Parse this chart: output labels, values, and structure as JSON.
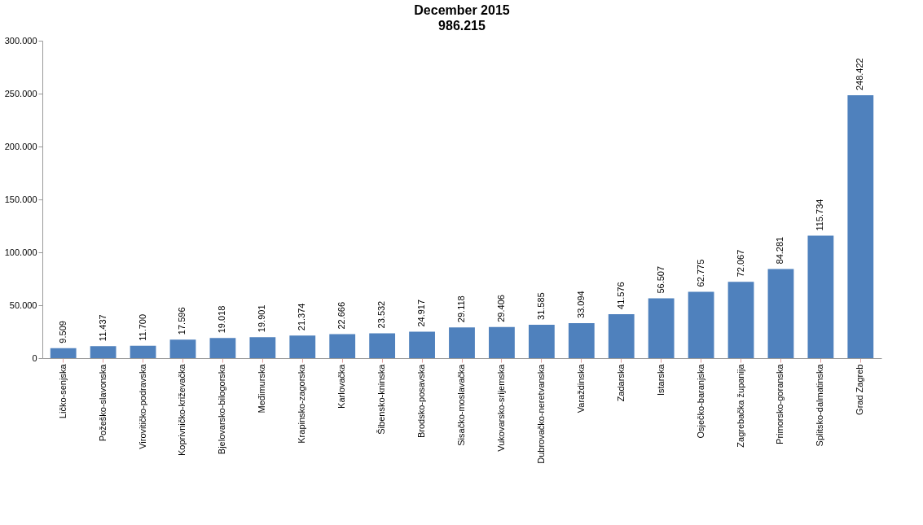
{
  "chart_data": {
    "type": "bar",
    "title": "December 2015",
    "subtitle": "986.215",
    "categories": [
      "Ličko-senjska",
      "Požeško-slavonska",
      "Virovitičko-podravska",
      "Koprivničko-križevačka",
      "Bjelovarsko-bilogorska",
      "Međimurska",
      "Krapinsko-zagorska",
      "Karlovačka",
      "Šibensko-kninska",
      "Brodsko-posavska",
      "Sisačko-moslavačka",
      "Vukovarsko-srijemska",
      "Dubrovačko-neretvanska",
      "Varaždinska",
      "Zadarska",
      "Istarska",
      "Osječko-baranjska",
      "Zagrebačka županija",
      "Primorsko-goranska",
      "Splitsko-dalmatinska",
      "Grad Zagreb"
    ],
    "values": [
      9509,
      11437,
      11700,
      17596,
      19018,
      19901,
      21374,
      22666,
      23532,
      24917,
      29118,
      29406,
      31585,
      33094,
      41576,
      56507,
      62775,
      72067,
      84281,
      115734,
      248422
    ],
    "value_labels": [
      "9.509",
      "11.437",
      "11.700",
      "17.596",
      "19.018",
      "19.901",
      "21.374",
      "22.666",
      "23.532",
      "24.917",
      "29.118",
      "29.406",
      "31.585",
      "33.094",
      "41.576",
      "56.507",
      "62.775",
      "72.067",
      "84.281",
      "115.734",
      "248.422"
    ],
    "color": "#4f81bd",
    "ylim": [
      0,
      300000
    ],
    "yticks": [
      {
        "value": 0,
        "label": "0"
      },
      {
        "value": 50000,
        "label": "50.000"
      },
      {
        "value": 100000,
        "label": "100.000"
      },
      {
        "value": 150000,
        "label": "150.000"
      },
      {
        "value": 200000,
        "label": "200.000"
      },
      {
        "value": 250000,
        "label": "250.000"
      },
      {
        "value": 300000,
        "label": "300.000"
      }
    ],
    "grid": false
  }
}
